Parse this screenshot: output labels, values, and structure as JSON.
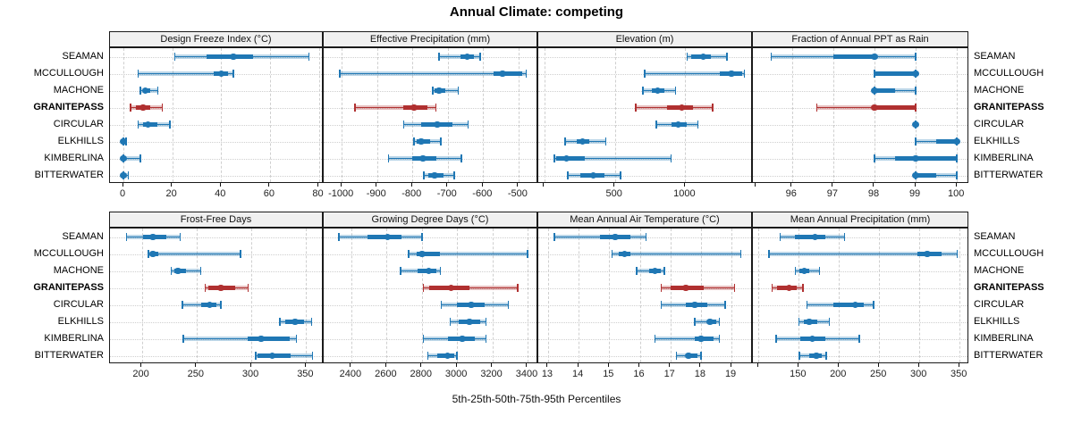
{
  "title": "Annual Climate: competing",
  "caption": "5th-25th-50th-75th-95th Percentiles",
  "colors": {
    "series": "#1f77b4",
    "highlight": "#b03030",
    "gridline": "#cfcfcf",
    "strip_bg": "#f0f0f0",
    "border": "#1a1a1a"
  },
  "chart_data": {
    "type": "dotplot",
    "subtype": "percentile-range-trellis",
    "percentile_levels": [
      "5th",
      "25th",
      "50th",
      "75th",
      "95th"
    ],
    "stations": [
      "SEAMAN",
      "MCCULLOUGH",
      "MACHONE",
      "GRANITEPASS",
      "CIRCULAR",
      "ELKHILLS",
      "KIMBERLINA",
      "BITTERWATER"
    ],
    "highlight_station": "GRANITEPASS",
    "legend_position": "none",
    "grid": "dashed",
    "panels": [
      {
        "label": "Design Freeze Index (°C)",
        "grid": {
          "row": 0,
          "col": 0
        },
        "xlim": [
          -5.5,
          82
        ],
        "ticks": [
          {
            "v": 0,
            "label": "0"
          },
          {
            "v": 20,
            "label": "20"
          },
          {
            "v": 40,
            "label": "40"
          },
          {
            "v": 60,
            "label": "60"
          },
          {
            "v": 80,
            "label": "80"
          }
        ],
        "values": [
          [
            21,
            34,
            45,
            53,
            76
          ],
          [
            6,
            37,
            40,
            43,
            45
          ],
          [
            7,
            8,
            9,
            11,
            14
          ],
          [
            3,
            5,
            8,
            11,
            16
          ],
          [
            6,
            8,
            10,
            14,
            19
          ],
          [
            0,
            0,
            0,
            0,
            1
          ],
          [
            0,
            0,
            0,
            1,
            7
          ],
          [
            0,
            0,
            0,
            1,
            2
          ]
        ]
      },
      {
        "label": "Effective Precipitation (mm)",
        "grid": {
          "row": 0,
          "col": 1
        },
        "xlim": [
          -1051,
          -444
        ],
        "ticks": [
          {
            "v": -1000,
            "label": "-1000"
          },
          {
            "v": -900,
            "label": "-900"
          },
          {
            "v": -800,
            "label": "-800"
          },
          {
            "v": -700,
            "label": "-700"
          },
          {
            "v": -600,
            "label": "-600"
          },
          {
            "v": -500,
            "label": "-500"
          }
        ],
        "values": [
          [
            -725,
            -665,
            -645,
            -625,
            -608
          ],
          [
            -1005,
            -570,
            -545,
            -490,
            -478
          ],
          [
            -743,
            -737,
            -725,
            -707,
            -670
          ],
          [
            -962,
            -825,
            -795,
            -758,
            -733
          ],
          [
            -825,
            -775,
            -730,
            -688,
            -642
          ],
          [
            -795,
            -787,
            -775,
            -750,
            -720
          ],
          [
            -868,
            -800,
            -770,
            -733,
            -662
          ],
          [
            -768,
            -755,
            -738,
            -713,
            -682
          ]
        ]
      },
      {
        "label": "Elevation (m)",
        "grid": {
          "row": 0,
          "col": 2
        },
        "xlim": [
          -44,
          1480
        ],
        "ticks": [
          {
            "v": 0,
            "label": ""
          },
          {
            "v": 500,
            "label": "500"
          },
          {
            "v": 1000,
            "label": "1000"
          },
          {
            "v": 1500,
            "label": ""
          }
        ],
        "values": [
          [
            1013,
            1045,
            1126,
            1183,
            1296
          ],
          [
            711,
            1246,
            1327,
            1403,
            1420
          ],
          [
            698,
            761,
            805,
            849,
            931
          ],
          [
            648,
            868,
            975,
            1057,
            1195
          ],
          [
            793,
            900,
            950,
            1013,
            1088
          ],
          [
            145,
            226,
            270,
            321,
            434
          ],
          [
            69,
            80,
            157,
            289,
            899
          ],
          [
            164,
            252,
            346,
            428,
            541
          ]
        ]
      },
      {
        "label": "Fraction of Annual PPT as Rain",
        "grid": {
          "row": 0,
          "col": 3
        },
        "xlim": [
          95.05,
          100.3
        ],
        "ticks": [
          {
            "v": 96,
            "label": "96"
          },
          {
            "v": 97,
            "label": "97"
          },
          {
            "v": 98,
            "label": "98"
          },
          {
            "v": 99,
            "label": "99"
          },
          {
            "v": 100,
            "label": "100"
          }
        ],
        "values": [
          [
            95.5,
            97,
            98,
            98,
            99
          ],
          [
            98,
            98,
            99,
            99,
            99
          ],
          [
            98,
            98,
            98,
            98.5,
            99
          ],
          [
            96.6,
            98,
            98,
            99,
            99
          ],
          [
            99,
            99,
            99,
            99,
            99
          ],
          [
            99,
            99.5,
            100,
            100,
            100
          ],
          [
            98,
            98.5,
            99,
            100,
            100
          ],
          [
            99,
            99,
            99,
            99.5,
            100
          ]
        ]
      },
      {
        "label": "Frost-Free Days",
        "grid": {
          "row": 1,
          "col": 0
        },
        "xlim": [
          171,
          366
        ],
        "ticks": [
          {
            "v": 200,
            "label": "200"
          },
          {
            "v": 250,
            "label": "250"
          },
          {
            "v": 300,
            "label": "300"
          },
          {
            "v": 350,
            "label": "350"
          }
        ],
        "values": [
          [
            186,
            201,
            210,
            222,
            235
          ],
          [
            206,
            208,
            210,
            215,
            290
          ],
          [
            227,
            230,
            233,
            240,
            254
          ],
          [
            258,
            261,
            272,
            285,
            297
          ],
          [
            237,
            254,
            262,
            268,
            272
          ],
          [
            326,
            331,
            340,
            348,
            355
          ],
          [
            238,
            297,
            309,
            335,
            341
          ],
          [
            304,
            306,
            319,
            336,
            356
          ]
        ]
      },
      {
        "label": "Growing Degree Days (°C)",
        "grid": {
          "row": 1,
          "col": 1
        },
        "xlim": [
          2243,
          3461
        ],
        "ticks": [
          {
            "v": 2400,
            "label": "2400"
          },
          {
            "v": 2600,
            "label": "2600"
          },
          {
            "v": 2800,
            "label": "2800"
          },
          {
            "v": 3000,
            "label": "3000"
          },
          {
            "v": 3200,
            "label": "3200"
          },
          {
            "v": 3400,
            "label": "3400"
          }
        ],
        "values": [
          [
            2330,
            2490,
            2605,
            2685,
            2800
          ],
          [
            2725,
            2770,
            2800,
            2905,
            3400
          ],
          [
            2680,
            2775,
            2840,
            2885,
            2905
          ],
          [
            2810,
            2840,
            2965,
            3070,
            3345
          ],
          [
            2910,
            3000,
            3080,
            3155,
            3290
          ],
          [
            2960,
            3010,
            3070,
            3130,
            3165
          ],
          [
            2810,
            2950,
            3030,
            3100,
            3165
          ],
          [
            2835,
            2890,
            2945,
            2985,
            3000
          ]
        ]
      },
      {
        "label": "Mean Annual Air Temperature (°C)",
        "grid": {
          "row": 1,
          "col": 2
        },
        "xlim": [
          12.68,
          19.7
        ],
        "ticks": [
          {
            "v": 13,
            "label": "13"
          },
          {
            "v": 14,
            "label": "14"
          },
          {
            "v": 15,
            "label": "15"
          },
          {
            "v": 16,
            "label": "16"
          },
          {
            "v": 17,
            "label": "17"
          },
          {
            "v": 18,
            "label": "18"
          },
          {
            "v": 19,
            "label": "19"
          }
        ],
        "values": [
          [
            13.2,
            14.7,
            15.2,
            15.7,
            16.2
          ],
          [
            15.1,
            15.3,
            15.5,
            15.7,
            19.3
          ],
          [
            15.9,
            16.3,
            16.5,
            16.7,
            16.8
          ],
          [
            16.7,
            17.0,
            17.5,
            18.1,
            19.1
          ],
          [
            16.7,
            17.5,
            17.8,
            18.2,
            18.8
          ],
          [
            17.8,
            18.2,
            18.3,
            18.5,
            18.6
          ],
          [
            16.5,
            17.8,
            18.0,
            18.4,
            18.6
          ],
          [
            17.2,
            17.5,
            17.6,
            17.9,
            18.0
          ]
        ]
      },
      {
        "label": "Mean Annual Precipitation (mm)",
        "grid": {
          "row": 1,
          "col": 3
        },
        "xlim": [
          93,
          362
        ],
        "ticks": [
          {
            "v": 100,
            "label": ""
          },
          {
            "v": 150,
            "label": "150"
          },
          {
            "v": 200,
            "label": "200"
          },
          {
            "v": 250,
            "label": "250"
          },
          {
            "v": 300,
            "label": "300"
          },
          {
            "v": 350,
            "label": "350"
          }
        ],
        "values": [
          [
            127,
            145,
            170,
            183,
            207
          ],
          [
            113,
            297,
            310,
            328,
            347
          ],
          [
            146,
            151,
            157,
            163,
            176
          ],
          [
            117,
            123,
            138,
            147,
            155
          ],
          [
            160,
            193,
            220,
            231,
            243
          ],
          [
            150,
            156,
            163,
            173,
            188
          ],
          [
            122,
            152,
            167,
            183,
            225
          ],
          [
            151,
            163,
            172,
            179,
            184
          ]
        ]
      }
    ]
  }
}
